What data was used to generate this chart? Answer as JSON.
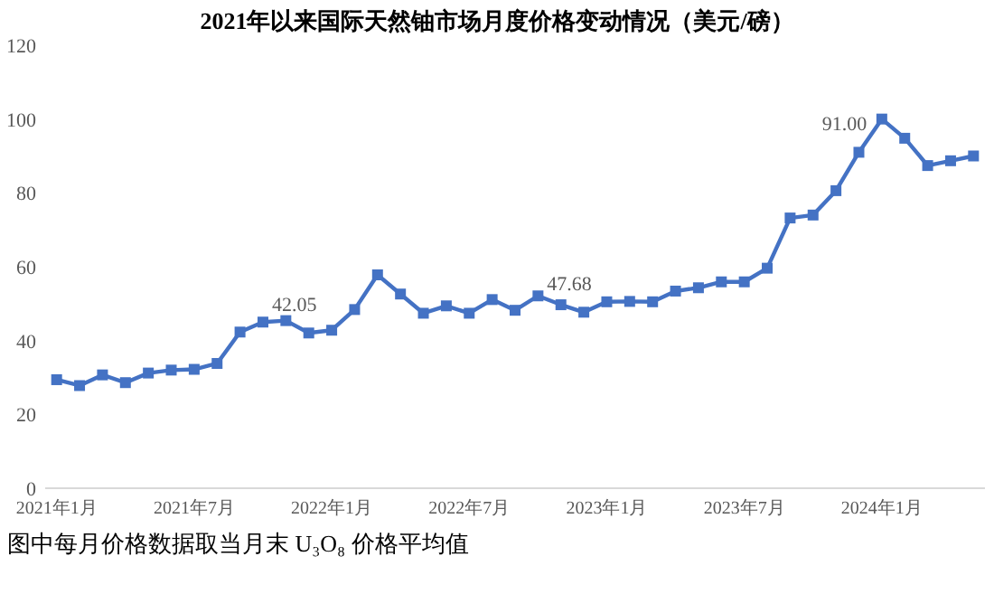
{
  "chart_data": {
    "type": "line",
    "title": "2021年以来国际天然铀市场月度价格变动情况（美元/磅）",
    "categories": [
      "2021年1月",
      null,
      null,
      null,
      null,
      null,
      "2021年7月",
      null,
      null,
      null,
      null,
      null,
      "2022年1月",
      null,
      null,
      null,
      null,
      null,
      "2022年7月",
      null,
      null,
      null,
      null,
      null,
      "2023年1月",
      null,
      null,
      null,
      null,
      null,
      "2023年7月",
      null,
      null,
      null,
      null,
      null,
      "2024年1月",
      null,
      null,
      null,
      null
    ],
    "series": [
      {
        "color": "#4472c4",
        "values": [
          29.4,
          27.8,
          30.7,
          28.6,
          31.2,
          32.0,
          32.2,
          33.8,
          42.3,
          45.0,
          45.4,
          42.05,
          42.8,
          48.4,
          57.8,
          52.6,
          47.4,
          49.4,
          47.4,
          51.1,
          48.2,
          52.1,
          49.7,
          47.68,
          50.5,
          50.6,
          50.5,
          53.4,
          54.3,
          55.9,
          55.9,
          59.6,
          73.2,
          74.0,
          80.6,
          91.0,
          100.0,
          94.8,
          87.4,
          88.7,
          90.0
        ],
        "value_labels": [
          null,
          null,
          null,
          null,
          null,
          null,
          null,
          null,
          null,
          null,
          null,
          "42.05",
          null,
          null,
          null,
          null,
          null,
          null,
          null,
          null,
          null,
          null,
          null,
          "47.68",
          null,
          null,
          null,
          null,
          null,
          null,
          null,
          null,
          null,
          null,
          null,
          "91.00",
          null,
          null,
          null,
          null,
          null
        ]
      }
    ],
    "ylim": [
      0,
      120
    ],
    "yticks": [
      0,
      20,
      40,
      60,
      80,
      100,
      120
    ],
    "marker": "square",
    "line_style": "solid",
    "annotations": [
      "图中每月价格数据取当月末 U₃O₈ 价格平均值"
    ]
  }
}
